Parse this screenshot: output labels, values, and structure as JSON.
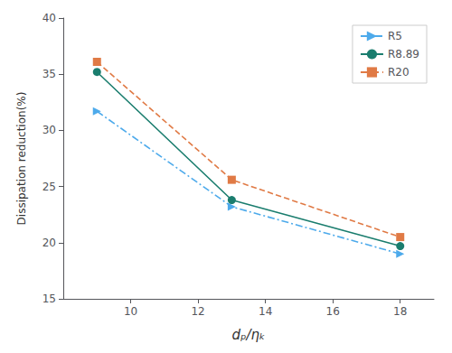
{
  "chart_data": {
    "type": "line",
    "x_label": "dₚ/ηₖ",
    "y_label": "Dissipation reduction(%)",
    "x": [
      9,
      13,
      18
    ],
    "series": [
      {
        "name": "R5",
        "color": "#4daaeb",
        "line_style": "dashdot",
        "marker": "triangle-right",
        "values": [
          31.7,
          23.2,
          19.0
        ]
      },
      {
        "name": "R8.89",
        "color": "#1a7d6e",
        "line_style": "solid",
        "marker": "circle",
        "values": [
          35.2,
          23.8,
          19.7
        ]
      },
      {
        "name": "R20",
        "color": "#e07a45",
        "line_style": "dashed",
        "marker": "square",
        "values": [
          36.1,
          25.6,
          20.5
        ]
      }
    ],
    "xlim": [
      8.0,
      19.0
    ],
    "ylim": [
      15,
      40
    ],
    "xticks": [
      10,
      12,
      14,
      16,
      18
    ],
    "yticks": [
      15,
      20,
      25,
      30,
      35,
      40
    ],
    "legend": "upper right",
    "grid": false
  }
}
